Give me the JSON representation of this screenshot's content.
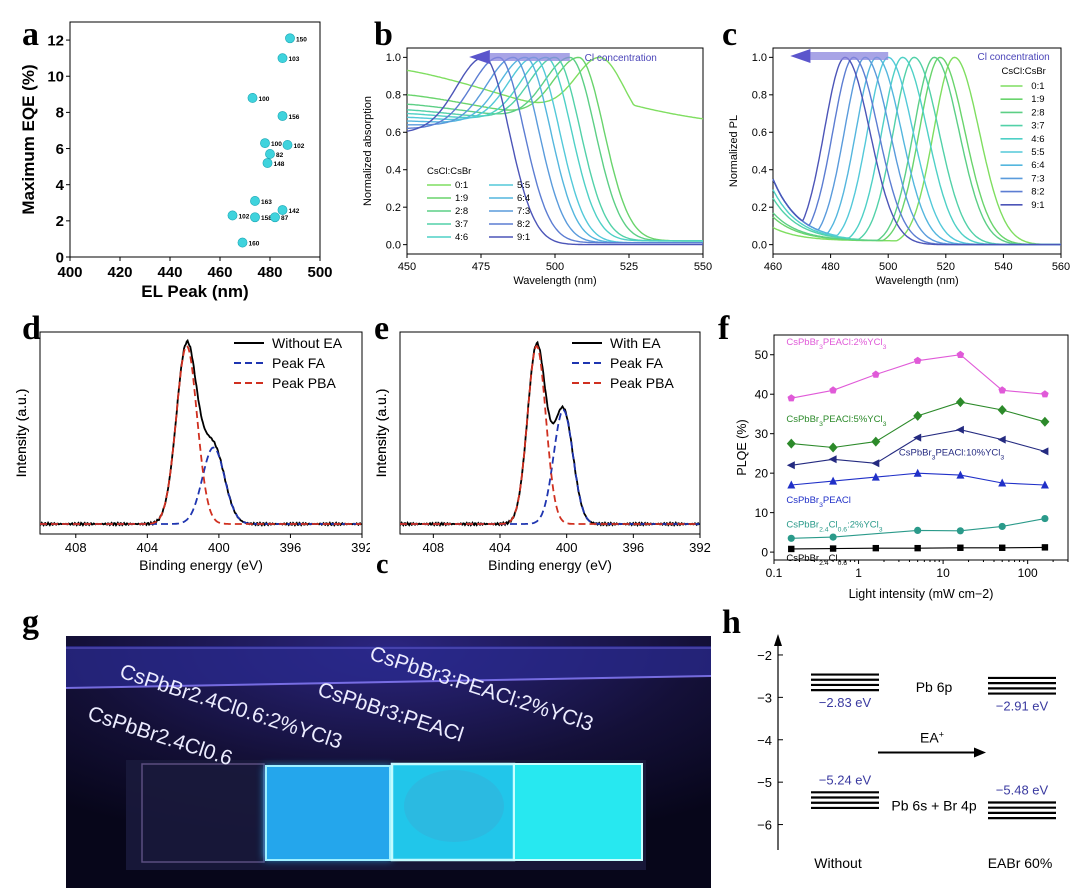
{
  "panels": {
    "a": {
      "letter": "a"
    },
    "b": {
      "letter": "b"
    },
    "c": {
      "letter": "c"
    },
    "d": {
      "letter": "d"
    },
    "e": {
      "letter": "e",
      "stray_letter": "c"
    },
    "f": {
      "letter": "f"
    },
    "g": {
      "letter": "g"
    },
    "h": {
      "letter": "h"
    }
  },
  "chart_data": [
    {
      "id": "a",
      "type": "scatter",
      "xlabel": "EL Peak (nm)",
      "ylabel": "Maximum EQE (%)",
      "xlim": [
        400,
        500
      ],
      "ylim": [
        0,
        13
      ],
      "xticks": [
        400,
        420,
        440,
        460,
        480,
        500
      ],
      "yticks": [
        0,
        2,
        4,
        6,
        8,
        10,
        12
      ],
      "color": "#3fd3dd",
      "points": [
        {
          "x": 488,
          "y": 12.1,
          "label": "150"
        },
        {
          "x": 485,
          "y": 11.0,
          "label": "103"
        },
        {
          "x": 473,
          "y": 8.8,
          "label": "100"
        },
        {
          "x": 485,
          "y": 7.8,
          "label": "156"
        },
        {
          "x": 478,
          "y": 6.3,
          "label": "100"
        },
        {
          "x": 487,
          "y": 6.2,
          "label": "102"
        },
        {
          "x": 480,
          "y": 5.7,
          "label": "82"
        },
        {
          "x": 479,
          "y": 5.2,
          "label": "148"
        },
        {
          "x": 474,
          "y": 3.1,
          "label": "163"
        },
        {
          "x": 485,
          "y": 2.6,
          "label": "142"
        },
        {
          "x": 465,
          "y": 2.3,
          "label": "102"
        },
        {
          "x": 474,
          "y": 2.2,
          "label": "158"
        },
        {
          "x": 482,
          "y": 2.2,
          "label": "87"
        },
        {
          "x": 469,
          "y": 0.8,
          "label": "160"
        }
      ]
    },
    {
      "id": "b",
      "type": "line",
      "xlabel": "Wavelength (nm)",
      "ylabel": "Normalized absorption",
      "xlim": [
        450,
        550
      ],
      "ylim": [
        -0.05,
        1.05
      ],
      "xticks": [
        450,
        475,
        500,
        525,
        550
      ],
      "yticks": [
        0.0,
        0.2,
        0.4,
        0.6,
        0.8,
        1.0
      ],
      "annotation": "Cl concentration",
      "legend_title": "CsCl:CsBr",
      "legend_position": "bottom-left",
      "series": [
        {
          "name": "0:1",
          "peak": 515,
          "start": 0.93,
          "tail": 0.58,
          "color": "#7fde60"
        },
        {
          "name": "1:9",
          "peak": 508,
          "start": 0.8,
          "tail": 0.02,
          "color": "#69d46c"
        },
        {
          "name": "2:8",
          "peak": 505,
          "start": 0.75,
          "tail": 0.02,
          "color": "#5ccf85"
        },
        {
          "name": "3:7",
          "peak": 500,
          "start": 0.72,
          "tail": 0.02,
          "color": "#52d1a8"
        },
        {
          "name": "4:6",
          "peak": 497,
          "start": 0.7,
          "tail": 0.02,
          "color": "#4ed0c6"
        },
        {
          "name": "5:5",
          "peak": 493,
          "start": 0.68,
          "tail": 0.01,
          "color": "#53c9d9"
        },
        {
          "name": "6:4",
          "peak": 490,
          "start": 0.66,
          "tail": 0.01,
          "color": "#54b6de"
        },
        {
          "name": "7:3",
          "peak": 486,
          "start": 0.64,
          "tail": 0.01,
          "color": "#5a9bdc"
        },
        {
          "name": "8:2",
          "peak": 481,
          "start": 0.62,
          "tail": 0.01,
          "color": "#5c7dd2"
        },
        {
          "name": "9:1",
          "peak": 476,
          "start": 0.6,
          "tail": 0.0,
          "color": "#4c55b8"
        }
      ]
    },
    {
      "id": "c",
      "type": "line",
      "xlabel": "Wavelength (nm)",
      "ylabel": "Normalized PL",
      "xlim": [
        460,
        560
      ],
      "ylim": [
        -0.05,
        1.05
      ],
      "xticks": [
        460,
        480,
        500,
        520,
        540,
        560
      ],
      "yticks": [
        0.0,
        0.2,
        0.4,
        0.6,
        0.8,
        1.0
      ],
      "annotation": "Cl concentration",
      "legend_title": "CsCl:CsBr",
      "legend_position": "top-right",
      "series": [
        {
          "name": "0:1",
          "peak": 523,
          "color": "#7fde60"
        },
        {
          "name": "1:9",
          "peak": 518,
          "color": "#69d46c"
        },
        {
          "name": "2:8",
          "peak": 516,
          "color": "#5ccf85"
        },
        {
          "name": "3:7",
          "peak": 509,
          "color": "#52d1a8"
        },
        {
          "name": "4:6",
          "peak": 505,
          "color": "#4ed0c6"
        },
        {
          "name": "5:5",
          "peak": 500,
          "color": "#53c9d9"
        },
        {
          "name": "6:4",
          "peak": 496,
          "color": "#54b6de"
        },
        {
          "name": "7:3",
          "peak": 492,
          "color": "#5a9bdc"
        },
        {
          "name": "8:2",
          "peak": 488,
          "color": "#5c7dd2"
        },
        {
          "name": "9:1",
          "peak": 485,
          "color": "#4c55b8"
        }
      ]
    },
    {
      "id": "d",
      "type": "line",
      "xlabel": "Binding energy (eV)",
      "ylabel": "Intensity (a.u.)",
      "xlim": [
        410,
        392
      ],
      "xticks": [
        408,
        404,
        400,
        396,
        392
      ],
      "legend_position": "top-right",
      "series": [
        {
          "name": "Without EA",
          "color": "#000000",
          "dash": false
        },
        {
          "name": "Peak FA",
          "color": "#1f35b0",
          "dash": true,
          "center": 400.3,
          "height": 0.43,
          "width": 0.62
        },
        {
          "name": "Peak PBA",
          "color": "#d03020",
          "dash": true,
          "center": 401.8,
          "height": 1.0,
          "width": 0.58
        }
      ]
    },
    {
      "id": "e",
      "type": "line",
      "xlabel": "Binding energy (eV)",
      "ylabel": "Intensity (a.u.)",
      "xlim": [
        410,
        392
      ],
      "xticks": [
        408,
        404,
        400,
        396,
        392
      ],
      "legend_position": "top-right",
      "series": [
        {
          "name": "With EA",
          "color": "#000000",
          "dash": false
        },
        {
          "name": "Peak FA",
          "color": "#1f35b0",
          "dash": true,
          "center": 400.2,
          "height": 0.64,
          "width": 0.58
        },
        {
          "name": "Peak PBA",
          "color": "#d03020",
          "dash": true,
          "center": 401.8,
          "height": 1.0,
          "width": 0.55
        }
      ]
    },
    {
      "id": "f",
      "type": "line",
      "xlabel": "Light intensity (mW cm−2)",
      "ylabel": "PLQE (%)",
      "xscale": "log",
      "xlim": [
        0.1,
        300
      ],
      "ylim": [
        -2,
        55
      ],
      "xticks": [
        0.1,
        1,
        10,
        100
      ],
      "xticklabels": [
        "0.1",
        "1",
        "10",
        "100"
      ],
      "yticks": [
        0,
        10,
        20,
        30,
        40,
        50
      ],
      "x": [
        0.16,
        0.5,
        1.6,
        5,
        16,
        50,
        160
      ],
      "series": [
        {
          "name": "CsPbBr3PEACl:2%YCl3",
          "marker": "pentagon",
          "color": "#e05ad8",
          "values": [
            39,
            41,
            45,
            48.5,
            50,
            41,
            40
          ]
        },
        {
          "name": "CsPbBr3PEACl:5%YCl3",
          "marker": "diamond",
          "color": "#2c8a2a",
          "values": [
            27.5,
            26.5,
            28,
            34.5,
            38,
            36,
            33
          ]
        },
        {
          "name": "CsPbBr3PEACl:10%YCl3",
          "marker": "triangle-left",
          "color": "#242a80",
          "values": [
            22,
            23.5,
            22.5,
            29,
            31,
            28.5,
            25.5
          ]
        },
        {
          "name": "CsPbBr3PEACl",
          "marker": "triangle-up",
          "color": "#2030c8",
          "values": [
            17,
            18,
            19,
            20,
            19.5,
            17.5,
            17
          ]
        },
        {
          "name": "CsPbBr2.4Cl0.6:2%YCl3",
          "marker": "circle",
          "color": "#2a9a8a",
          "values": [
            3.5,
            3.8,
            null,
            5.5,
            5.4,
            6.5,
            8.5
          ]
        },
        {
          "name": "CsPbBr2.4Cl0.6",
          "marker": "square",
          "color": "#000000",
          "values": [
            0.8,
            0.9,
            1.0,
            1.0,
            1.1,
            1.1,
            1.2
          ]
        }
      ]
    },
    {
      "id": "h",
      "type": "diagram",
      "ylim": [
        -6.6,
        -1.6
      ],
      "yticks": [
        -2,
        -3,
        -4,
        -5,
        -6
      ],
      "levels": [
        {
          "label": "−2.83 eV",
          "value": -2.83,
          "side": "left"
        },
        {
          "label": "−2.91 eV",
          "value": -2.91,
          "side": "right"
        },
        {
          "label": "−5.24 eV",
          "value": -5.24,
          "side": "left"
        },
        {
          "label": "−5.48 eV",
          "value": -5.48,
          "side": "right"
        }
      ],
      "band_labels": {
        "top": "Pb 6p",
        "bottom": "Pb 6s + Br 4p"
      },
      "arrow_label": "EA+",
      "xlabels": [
        "Without",
        "EABr 60%"
      ]
    }
  ],
  "photo": {
    "samples": [
      {
        "formula": "CsPbBr2.4Cl0.6",
        "glow": "none"
      },
      {
        "formula": "CsPbBr2.4Cl0.6:2%YCl3",
        "glow": "#39c9f2"
      },
      {
        "formula": "CsPbBr3:PEACl",
        "glow": "#2ee0f0"
      },
      {
        "formula": "CsPbBr3:PEACl:2%YCl3",
        "glow": "#33f3ee"
      }
    ]
  }
}
